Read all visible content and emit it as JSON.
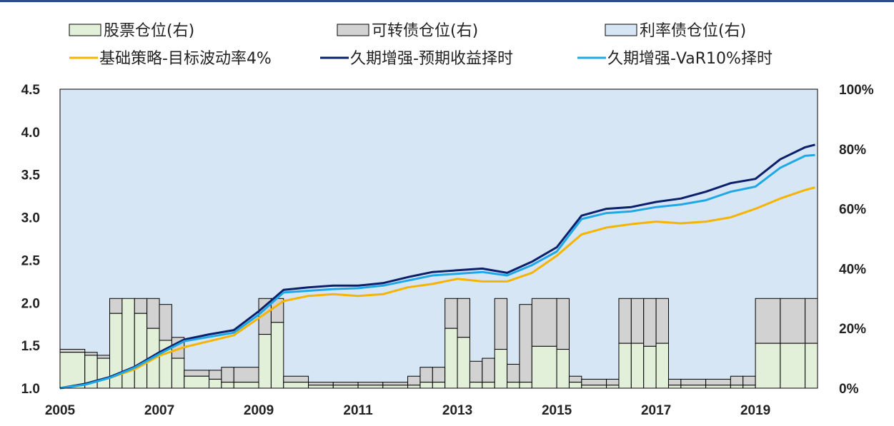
{
  "colors": {
    "stock": "#e3f0d9",
    "convertible": "#d2d2d2",
    "rate_bond": "#d7e6f4",
    "base_strategy": "#f5b400",
    "duration_expected": "#0b1f6b",
    "duration_var": "#1fa8e6",
    "outline": "#000000"
  },
  "chart_data": {
    "type": "line",
    "legend": [
      {
        "key": "stock",
        "label": "股票仓位(右)",
        "kind": "box"
      },
      {
        "key": "convertible",
        "label": "可转债仓位(右)",
        "kind": "box"
      },
      {
        "key": "rate_bond",
        "label": "利率债仓位(右)",
        "kind": "box"
      },
      {
        "key": "base_strategy",
        "label": "基础策略-目标波动率4%",
        "kind": "line"
      },
      {
        "key": "duration_expected",
        "label": "久期增强-预期收益择时",
        "kind": "line"
      },
      {
        "key": "duration_var",
        "label": "久期增强-VaR10%择时",
        "kind": "line"
      }
    ],
    "x_ticks": [
      "2005",
      "2007",
      "2009",
      "2011",
      "2013",
      "2015",
      "2017",
      "2019"
    ],
    "x_tick_values": [
      2005,
      2007,
      2009,
      2011,
      2013,
      2015,
      2017,
      2019
    ],
    "xlim": [
      2005,
      2020.25
    ],
    "y_left_ticks": [
      "1.0",
      "1.5",
      "2.0",
      "2.5",
      "3.0",
      "3.5",
      "4.0",
      "4.5"
    ],
    "ylim_left": [
      1.0,
      4.5
    ],
    "y_right_ticks": [
      "0%",
      "20%",
      "40%",
      "60%",
      "80%",
      "100%"
    ],
    "ylim_right": [
      0,
      100
    ],
    "line_series": [
      {
        "key": "base_strategy",
        "x": [
          2005,
          2005.5,
          2006,
          2006.5,
          2007,
          2007.5,
          2008,
          2008.5,
          2009,
          2009.5,
          2010,
          2010.5,
          2011,
          2011.5,
          2012,
          2012.5,
          2013,
          2013.5,
          2014,
          2014.5,
          2015,
          2015.5,
          2016,
          2016.5,
          2017,
          2017.5,
          2018,
          2018.5,
          2019,
          2019.5,
          2020,
          2020.2
        ],
        "y": [
          1.0,
          1.05,
          1.12,
          1.22,
          1.38,
          1.48,
          1.55,
          1.62,
          1.82,
          2.02,
          2.08,
          2.1,
          2.08,
          2.1,
          2.18,
          2.22,
          2.28,
          2.25,
          2.25,
          2.35,
          2.55,
          2.8,
          2.88,
          2.92,
          2.95,
          2.93,
          2.95,
          3.0,
          3.1,
          3.22,
          3.32,
          3.35
        ]
      },
      {
        "key": "duration_expected",
        "x": [
          2005,
          2005.5,
          2006,
          2006.5,
          2007,
          2007.5,
          2008,
          2008.5,
          2009,
          2009.5,
          2010,
          2010.5,
          2011,
          2011.5,
          2012,
          2012.5,
          2013,
          2013.5,
          2014,
          2014.5,
          2015,
          2015.5,
          2016,
          2016.5,
          2017,
          2017.5,
          2018,
          2018.5,
          2019,
          2019.5,
          2020,
          2020.2
        ],
        "y": [
          1.0,
          1.05,
          1.13,
          1.25,
          1.42,
          1.57,
          1.63,
          1.68,
          1.9,
          2.15,
          2.18,
          2.2,
          2.2,
          2.23,
          2.3,
          2.36,
          2.38,
          2.4,
          2.35,
          2.48,
          2.65,
          3.02,
          3.1,
          3.12,
          3.18,
          3.22,
          3.3,
          3.4,
          3.45,
          3.68,
          3.82,
          3.85
        ]
      },
      {
        "key": "duration_var",
        "x": [
          2005,
          2005.5,
          2006,
          2006.5,
          2007,
          2007.5,
          2008,
          2008.5,
          2009,
          2009.5,
          2010,
          2010.5,
          2011,
          2011.5,
          2012,
          2012.5,
          2013,
          2013.5,
          2014,
          2014.5,
          2015,
          2015.5,
          2016,
          2016.5,
          2017,
          2017.5,
          2018,
          2018.5,
          2019,
          2019.5,
          2020,
          2020.2
        ],
        "y": [
          1.0,
          1.04,
          1.12,
          1.24,
          1.4,
          1.55,
          1.6,
          1.65,
          1.86,
          2.12,
          2.14,
          2.16,
          2.17,
          2.2,
          2.26,
          2.32,
          2.34,
          2.36,
          2.32,
          2.44,
          2.6,
          2.98,
          3.05,
          3.07,
          3.12,
          3.15,
          3.2,
          3.3,
          3.36,
          3.58,
          3.72,
          3.73
        ]
      }
    ],
    "positions": {
      "x": [
        2005,
        2005.5,
        2005.75,
        2006,
        2006.25,
        2006.5,
        2006.75,
        2007,
        2007.25,
        2007.5,
        2008,
        2008.25,
        2008.5,
        2009,
        2009.25,
        2009.5,
        2010,
        2010.5,
        2011,
        2011.5,
        2012,
        2012.25,
        2012.5,
        2012.75,
        2013,
        2013.25,
        2013.5,
        2013.75,
        2014,
        2014.25,
        2014.5,
        2015,
        2015.25,
        2015.5,
        2016,
        2016.25,
        2016.5,
        2016.75,
        2017,
        2017.25,
        2017.5,
        2018,
        2018.5,
        2018.75,
        2019,
        2019.5,
        2020
      ],
      "stock": [
        12,
        11,
        10,
        25,
        30,
        25,
        20,
        16,
        10,
        4,
        3,
        2,
        2,
        18,
        22,
        2,
        1,
        1,
        1,
        1,
        1,
        2,
        2,
        20,
        17,
        2,
        2,
        13,
        2,
        2,
        14,
        13,
        2,
        1,
        1,
        15,
        15,
        14,
        15,
        1,
        1,
        1,
        1,
        1,
        15,
        15,
        15
      ],
      "convertible": [
        1,
        1,
        1,
        5,
        0,
        5,
        10,
        12,
        7,
        2,
        3,
        5,
        5,
        12,
        8,
        2,
        1,
        1,
        1,
        1,
        3,
        5,
        5,
        10,
        13,
        7,
        8,
        17,
        6,
        26,
        16,
        17,
        2,
        2,
        2,
        15,
        15,
        16,
        15,
        2,
        2,
        2,
        3,
        3,
        15,
        15,
        15
      ]
    }
  }
}
